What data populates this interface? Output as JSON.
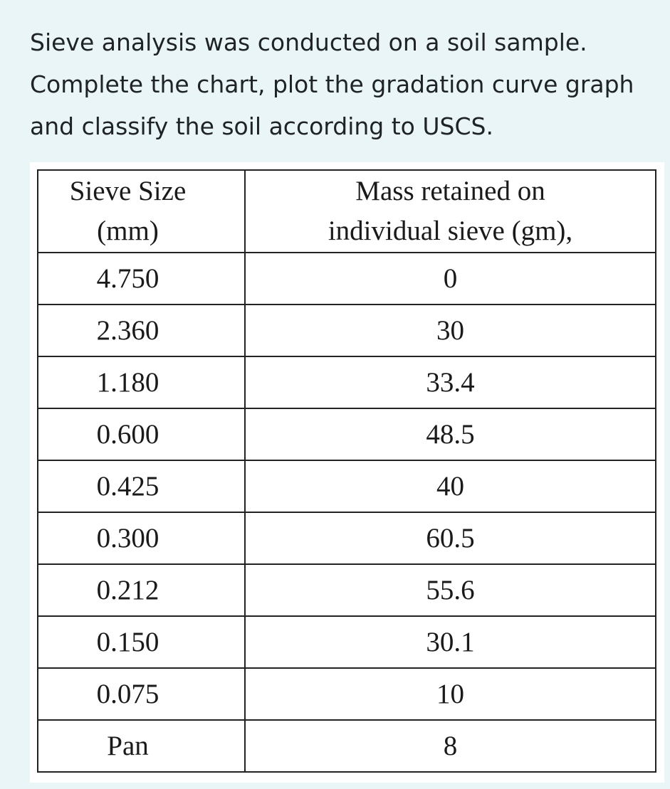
{
  "question": {
    "lines": [
      "Sieve analysis was conducted on a soil sample.",
      "Complete the chart, plot the gradation curve graph",
      "and classify the soil according to USCS."
    ]
  },
  "table": {
    "headers": {
      "sieve_size": [
        "Sieve Size",
        "(mm)"
      ],
      "mass_retained": [
        "Mass retained on",
        "individual sieve (gm),"
      ]
    },
    "rows": [
      {
        "sieve": "4.750",
        "mass": "0"
      },
      {
        "sieve": "2.360",
        "mass": "30"
      },
      {
        "sieve": "1.180",
        "mass": "33.4"
      },
      {
        "sieve": "0.600",
        "mass": "48.5"
      },
      {
        "sieve": "0.425",
        "mass": "40"
      },
      {
        "sieve": "0.300",
        "mass": "60.5"
      },
      {
        "sieve": "0.212",
        "mass": "55.6"
      },
      {
        "sieve": "0.150",
        "mass": "30.1"
      },
      {
        "sieve": "0.075",
        "mass": "10"
      },
      {
        "sieve": "Pan",
        "mass": "8"
      }
    ]
  }
}
